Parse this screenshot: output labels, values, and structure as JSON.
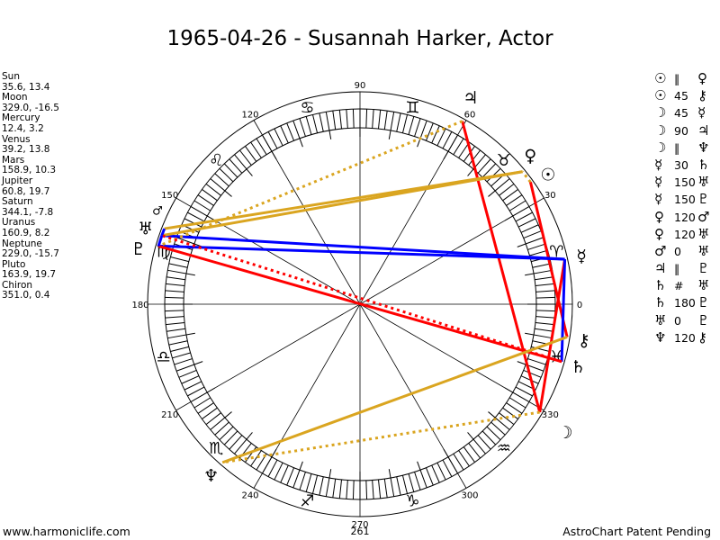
{
  "title": "1965-04-26 - Susannah Harker, Actor",
  "planets": [
    {
      "key": "sun",
      "name": "Sun",
      "glyph": "☉",
      "lon": 35.6,
      "dec": 13.4,
      "coords": "35.6, 13.4"
    },
    {
      "key": "moon",
      "name": "Moon",
      "glyph": "☽",
      "lon": 329.0,
      "dec": -16.5,
      "coords": "329.0, -16.5"
    },
    {
      "key": "mercury",
      "name": "Mercury",
      "glyph": "☿",
      "lon": 12.4,
      "dec": 3.2,
      "coords": "12.4, 3.2"
    },
    {
      "key": "venus",
      "name": "Venus",
      "glyph": "♀",
      "lon": 39.2,
      "dec": 13.8,
      "coords": "39.2, 13.8"
    },
    {
      "key": "mars",
      "name": "Mars",
      "glyph": "♂",
      "lon": 158.9,
      "dec": 10.3,
      "coords": "158.9, 10.3"
    },
    {
      "key": "jupiter",
      "name": "Jupiter",
      "glyph": "♃",
      "lon": 60.8,
      "dec": 19.7,
      "coords": "60.8, 19.7"
    },
    {
      "key": "saturn",
      "name": "Saturn",
      "glyph": "♄",
      "lon": 344.1,
      "dec": -7.8,
      "coords": "344.1, -7.8"
    },
    {
      "key": "uranus",
      "name": "Uranus",
      "glyph": "♅",
      "lon": 160.9,
      "dec": 8.2,
      "coords": "160.9, 8.2"
    },
    {
      "key": "neptune",
      "name": "Neptune",
      "glyph": "♆",
      "lon": 229.0,
      "dec": -15.7,
      "coords": "229.0, -15.7"
    },
    {
      "key": "pluto",
      "name": "Pluto",
      "glyph": "♇",
      "lon": 163.9,
      "dec": 19.7,
      "coords": "163.9, 19.7"
    },
    {
      "key": "chiron",
      "name": "Chiron",
      "glyph": "⚷",
      "lon": 351.0,
      "dec": 0.4,
      "coords": "351.0, 0.4"
    }
  ],
  "aspects": [
    {
      "p1": "sun",
      "p2": "venus",
      "type": "parallel",
      "label": "‖"
    },
    {
      "p1": "sun",
      "p2": "chiron",
      "type": "45",
      "label": "45"
    },
    {
      "p1": "moon",
      "p2": "mercury",
      "type": "45",
      "label": "45"
    },
    {
      "p1": "moon",
      "p2": "jupiter",
      "type": "90",
      "label": "90"
    },
    {
      "p1": "moon",
      "p2": "neptune",
      "type": "parallel",
      "label": "‖"
    },
    {
      "p1": "mercury",
      "p2": "saturn",
      "type": "30",
      "label": "30"
    },
    {
      "p1": "mercury",
      "p2": "uranus",
      "type": "150",
      "label": "150"
    },
    {
      "p1": "mercury",
      "p2": "pluto",
      "type": "150",
      "label": "150"
    },
    {
      "p1": "venus",
      "p2": "mars",
      "type": "120",
      "label": "120"
    },
    {
      "p1": "venus",
      "p2": "uranus",
      "type": "120",
      "label": "120"
    },
    {
      "p1": "mars",
      "p2": "uranus",
      "type": "0",
      "label": "0"
    },
    {
      "p1": "jupiter",
      "p2": "pluto",
      "type": "parallel",
      "label": "‖"
    },
    {
      "p1": "saturn",
      "p2": "uranus",
      "type": "contraparallel",
      "label": "#"
    },
    {
      "p1": "saturn",
      "p2": "pluto",
      "type": "180",
      "label": "180"
    },
    {
      "p1": "uranus",
      "p2": "pluto",
      "type": "0",
      "label": "0"
    },
    {
      "p1": "neptune",
      "p2": "chiron",
      "type": "120",
      "label": "120"
    }
  ],
  "aspect_styles": {
    "0": {
      "color": "#0000ff",
      "dotted": false
    },
    "30": {
      "color": "#0000ff",
      "dotted": false
    },
    "45": {
      "color": "#ff0000",
      "dotted": false
    },
    "90": {
      "color": "#ff0000",
      "dotted": false
    },
    "120": {
      "color": "#daa520",
      "dotted": false
    },
    "150": {
      "color": "#0000ff",
      "dotted": false
    },
    "180": {
      "color": "#ff0000",
      "dotted": false
    },
    "parallel": {
      "color": "#daa520",
      "dotted": true
    },
    "contraparallel": {
      "color": "#ff0000",
      "dotted": true
    }
  },
  "zodiac": [
    "♈",
    "♉",
    "♊",
    "♋",
    "♌",
    "♍",
    "♎",
    "♏",
    "♐",
    "♑",
    "♒",
    "♓"
  ],
  "degree_labels": [
    "0",
    "30",
    "60",
    "90",
    "120",
    "150",
    "180",
    "210",
    "240",
    "270",
    "300",
    "330"
  ],
  "bottom_value": "261",
  "footer": {
    "left": "www.harmoniclife.com",
    "right": "AstroChart Patent Pending"
  }
}
